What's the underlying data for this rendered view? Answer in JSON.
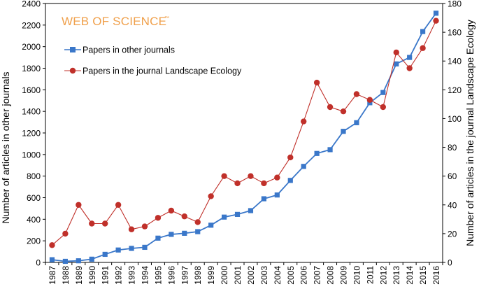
{
  "chart_data": {
    "type": "line",
    "brand": "WEB OF SCIENCE",
    "brand_mark": "™",
    "x": [
      1987,
      1988,
      1989,
      1990,
      1991,
      1992,
      1993,
      1994,
      1995,
      1996,
      1997,
      1998,
      1999,
      2000,
      2001,
      2002,
      2003,
      2004,
      2005,
      2006,
      2007,
      2008,
      2009,
      2010,
      2011,
      2012,
      2013,
      2014,
      2015,
      2016
    ],
    "x_labels": [
      "1987",
      "1988",
      "1989",
      "1990",
      "1991",
      "1992",
      "1993",
      "1994",
      "1995",
      "1996",
      "1997",
      "1998",
      "1999",
      "2000",
      "2001",
      "2002",
      "2003",
      "2004",
      "2005",
      "2006",
      "2007",
      "2008",
      "2009",
      "2010",
      "2011",
      "2012",
      "2013",
      "2014",
      "2015",
      "2016"
    ],
    "ylabel": "Number of articles in other journals",
    "y2label": "Number of articles in the journal Landscape Ecology",
    "ylim": [
      0,
      2400
    ],
    "y2lim": [
      0,
      180
    ],
    "y_ticks": [
      "0",
      "200",
      "400",
      "600",
      "800",
      "1000",
      "1200",
      "1400",
      "1600",
      "1800",
      "2000",
      "2200",
      "2400"
    ],
    "y2_ticks": [
      "0",
      "20",
      "40",
      "60",
      "80",
      "100",
      "120",
      "140",
      "160",
      "180"
    ],
    "series": [
      {
        "name": "Papers in other journals",
        "axis": "left",
        "color": "#3a77c9",
        "marker": "square",
        "values": [
          25,
          10,
          15,
          30,
          75,
          115,
          130,
          140,
          225,
          260,
          270,
          285,
          345,
          420,
          445,
          480,
          590,
          625,
          760,
          890,
          1010,
          1045,
          1215,
          1295,
          1480,
          1575,
          1840,
          1900,
          2140,
          2310
        ]
      },
      {
        "name": "Papers in the journal Landscape Ecology",
        "axis": "right",
        "color": "#c0302a",
        "marker": "circle",
        "values": [
          12,
          20,
          40,
          27,
          27,
          40,
          23,
          25,
          31,
          36,
          32,
          28,
          46,
          60,
          55,
          60,
          55,
          59,
          73,
          98,
          125,
          108,
          105,
          117,
          113,
          108,
          146,
          135,
          149,
          168
        ]
      }
    ]
  }
}
